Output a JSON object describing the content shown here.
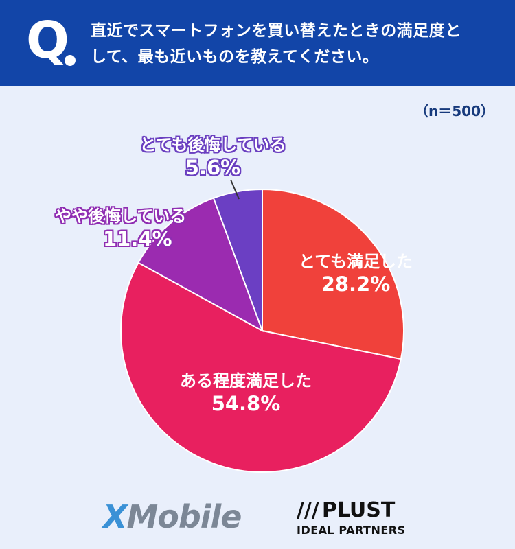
{
  "header": {
    "q_mark": "Q",
    "question_line1": "直近でスマートフォンを買い替えたときの満足度と",
    "question_line2": "して、最も近いものを教えてください。"
  },
  "sample_size": "（n＝500）",
  "chart_data": {
    "type": "pie",
    "title": "",
    "slices": [
      {
        "label": "とても満足した",
        "value": 28.2,
        "value_label": "28.2%",
        "color": "#f0413b"
      },
      {
        "label": "ある程度満足した",
        "value": 54.8,
        "value_label": "54.8%",
        "color": "#e8205f"
      },
      {
        "label": "やや後悔している",
        "value": 11.4,
        "value_label": "11.4%",
        "color": "#9b2bb0"
      },
      {
        "label": "とても後悔している",
        "value": 5.6,
        "value_label": "5.6%",
        "color": "#6b3fc3"
      }
    ],
    "start_angle": "12 o'clock",
    "direction": "clockwise",
    "legend": "none"
  },
  "logos": {
    "xmobile_x": "X",
    "xmobile_rest": "Mobile",
    "plust_name": "PLUST",
    "plust_sub": "IDEAL PARTNERS",
    "plust_mark": "///"
  },
  "colors": {
    "background": "#e9effb",
    "header": "#1245a8",
    "accent_text": "#173a7c"
  }
}
